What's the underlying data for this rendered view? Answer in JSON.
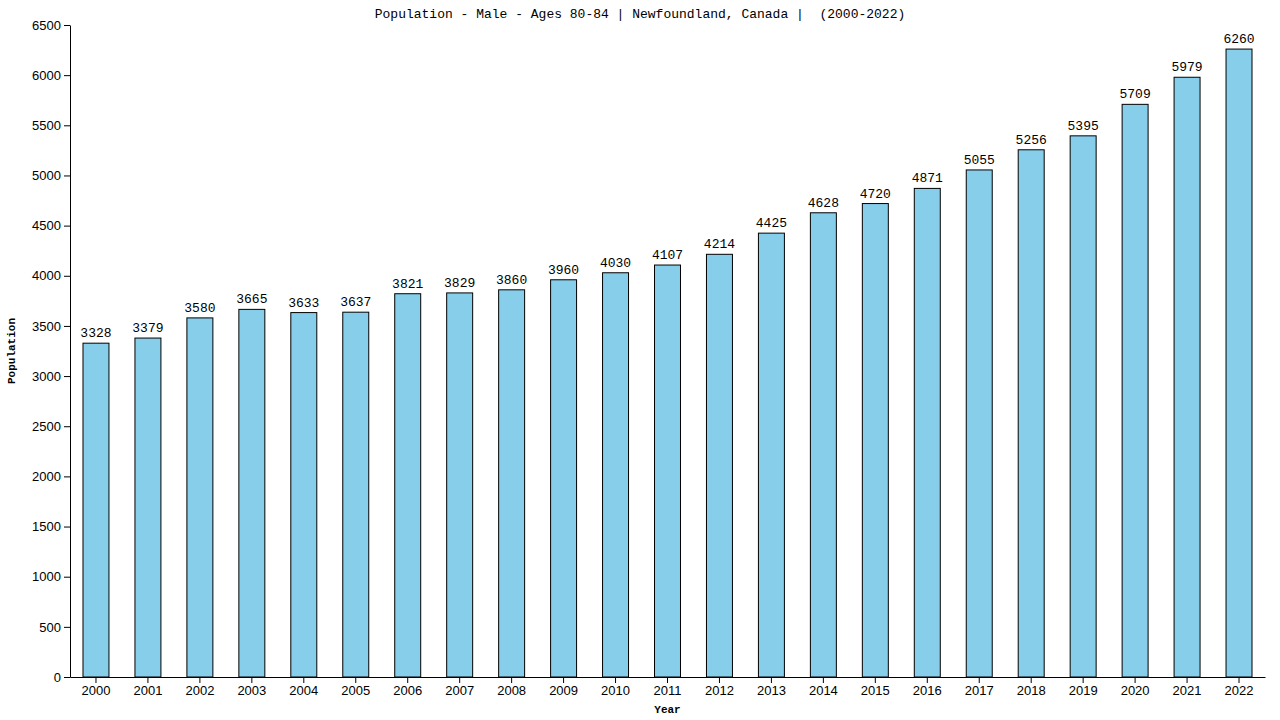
{
  "chart_data": {
    "type": "bar",
    "title": "Population - Male - Ages 80-84 | Newfoundland, Canada |  (2000-2022)",
    "x_label": "Year",
    "y_label": "Population",
    "categories": [
      "2000",
      "2001",
      "2002",
      "2003",
      "2004",
      "2005",
      "2006",
      "2007",
      "2008",
      "2009",
      "2010",
      "2011",
      "2012",
      "2013",
      "2014",
      "2015",
      "2016",
      "2017",
      "2018",
      "2019",
      "2020",
      "2021",
      "2022"
    ],
    "values": [
      3328,
      3379,
      3580,
      3665,
      3633,
      3637,
      3821,
      3829,
      3860,
      3960,
      4030,
      4107,
      4214,
      4425,
      4628,
      4720,
      4871,
      5055,
      5256,
      5395,
      5709,
      5979,
      6260
    ],
    "color": "#87ceeb",
    "ylim": [
      0,
      6500
    ],
    "yticks": [
      0,
      500,
      1000,
      1500,
      2000,
      2500,
      3000,
      3500,
      4000,
      4500,
      5000,
      5500,
      6000,
      6500
    ],
    "grid": false,
    "data_labels": true
  }
}
